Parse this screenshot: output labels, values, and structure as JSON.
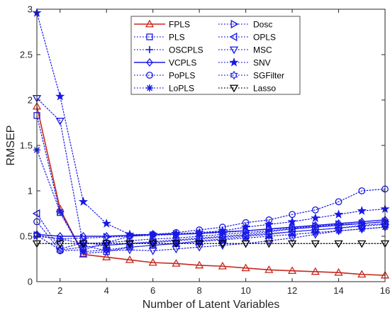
{
  "chart_data": {
    "type": "line",
    "xlabel": "Number of Latent Variables",
    "ylabel": "RMSEP",
    "xlim": [
      1,
      16
    ],
    "ylim": [
      0,
      3
    ],
    "xticks": [
      2,
      4,
      6,
      8,
      10,
      12,
      14,
      16
    ],
    "yticks": [
      0,
      0.5,
      1,
      1.5,
      2,
      2.5,
      3
    ],
    "ytick_labels": [
      "0",
      "0.5",
      "1",
      "1.5",
      "2",
      "2.5",
      "3"
    ],
    "grid": false,
    "legend_position": "top-right",
    "x": [
      1,
      2,
      3,
      4,
      5,
      6,
      7,
      8,
      9,
      10,
      11,
      12,
      13,
      14,
      15,
      16
    ],
    "series": [
      {
        "name": "FPLS",
        "color": "#c8281e",
        "dash": "solid",
        "marker": "triangle-up",
        "width": 1.6,
        "values": [
          1.93,
          0.8,
          0.3,
          0.27,
          0.24,
          0.21,
          0.2,
          0.18,
          0.17,
          0.15,
          0.13,
          0.12,
          0.11,
          0.1,
          0.08,
          0.07
        ]
      },
      {
        "name": "PLS",
        "color": "#1818e6",
        "dash": "dotted",
        "marker": "square",
        "width": 1.2,
        "values": [
          1.83,
          0.76,
          0.31,
          0.33,
          0.38,
          0.4,
          0.42,
          0.45,
          0.47,
          0.5,
          0.52,
          0.55,
          0.57,
          0.59,
          0.62,
          0.64
        ]
      },
      {
        "name": "OSCPLS",
        "color": "#1818e6",
        "dash": "dotted",
        "marker": "plus",
        "width": 1.2,
        "values": [
          0.5,
          0.47,
          0.42,
          0.43,
          0.45,
          0.47,
          0.48,
          0.5,
          0.52,
          0.54,
          0.56,
          0.58,
          0.6,
          0.62,
          0.64,
          0.66
        ]
      },
      {
        "name": "VCPLS",
        "color": "#1818e6",
        "dash": "solid",
        "marker": "diamond",
        "width": 1.4,
        "values": [
          0.52,
          0.5,
          0.5,
          0.5,
          0.51,
          0.52,
          0.52,
          0.53,
          0.55,
          0.56,
          0.58,
          0.6,
          0.62,
          0.64,
          0.66,
          0.68
        ]
      },
      {
        "name": "PoPLS",
        "color": "#1818e6",
        "dash": "dotted",
        "marker": "circle",
        "width": 1.2,
        "values": [
          0.66,
          0.34,
          0.35,
          0.43,
          0.5,
          0.52,
          0.54,
          0.57,
          0.6,
          0.65,
          0.68,
          0.74,
          0.79,
          0.88,
          1.0,
          1.02
        ]
      },
      {
        "name": "LoPLS",
        "color": "#1818e6",
        "dash": "dotted",
        "marker": "asterisk",
        "width": 1.2,
        "values": [
          1.45,
          0.77,
          0.33,
          0.35,
          0.38,
          0.4,
          0.42,
          0.44,
          0.46,
          0.48,
          0.5,
          0.52,
          0.54,
          0.56,
          0.58,
          0.6
        ]
      },
      {
        "name": "Dosc",
        "color": "#1818e6",
        "dash": "dotted",
        "marker": "triangle-right",
        "width": 1.2,
        "values": [
          0.51,
          0.47,
          0.48,
          0.49,
          0.5,
          0.51,
          0.52,
          0.53,
          0.54,
          0.56,
          0.58,
          0.59,
          0.61,
          0.63,
          0.64,
          0.66
        ]
      },
      {
        "name": "OPLS",
        "color": "#1818e6",
        "dash": "dotted",
        "marker": "triangle-left",
        "width": 1.2,
        "values": [
          0.75,
          0.36,
          0.43,
          0.4,
          0.42,
          0.43,
          0.45,
          0.47,
          0.49,
          0.51,
          0.53,
          0.55,
          0.57,
          0.59,
          0.61,
          0.63
        ]
      },
      {
        "name": "MSC",
        "color": "#1818e6",
        "dash": "dotted",
        "marker": "triangle-down",
        "width": 1.2,
        "values": [
          2.02,
          1.77,
          0.4,
          0.34,
          0.35,
          0.34,
          0.36,
          0.38,
          0.4,
          0.42,
          0.45,
          0.48,
          0.52,
          0.56,
          0.58,
          0.6
        ]
      },
      {
        "name": "SNV",
        "color": "#1818e6",
        "dash": "dotted",
        "marker": "pentagram",
        "width": 1.2,
        "values": [
          2.96,
          2.04,
          0.88,
          0.64,
          0.52,
          0.52,
          0.53,
          0.54,
          0.56,
          0.6,
          0.63,
          0.66,
          0.7,
          0.74,
          0.78,
          0.8
        ]
      },
      {
        "name": "SGFilter",
        "color": "#1818e6",
        "dash": "dotted",
        "marker": "hexagram",
        "width": 1.2,
        "values": [
          0.51,
          0.35,
          0.38,
          0.4,
          0.42,
          0.44,
          0.46,
          0.48,
          0.5,
          0.52,
          0.55,
          0.58,
          0.6,
          0.62,
          0.64,
          0.66
        ]
      },
      {
        "name": "Lasso",
        "color": "#000000",
        "dash": "dotted",
        "marker": "triangle-down",
        "width": 1.2,
        "values": [
          0.42,
          0.42,
          0.42,
          0.42,
          0.42,
          0.42,
          0.42,
          0.42,
          0.42,
          0.42,
          0.42,
          0.42,
          0.42,
          0.42,
          0.42,
          0.42
        ]
      }
    ]
  }
}
